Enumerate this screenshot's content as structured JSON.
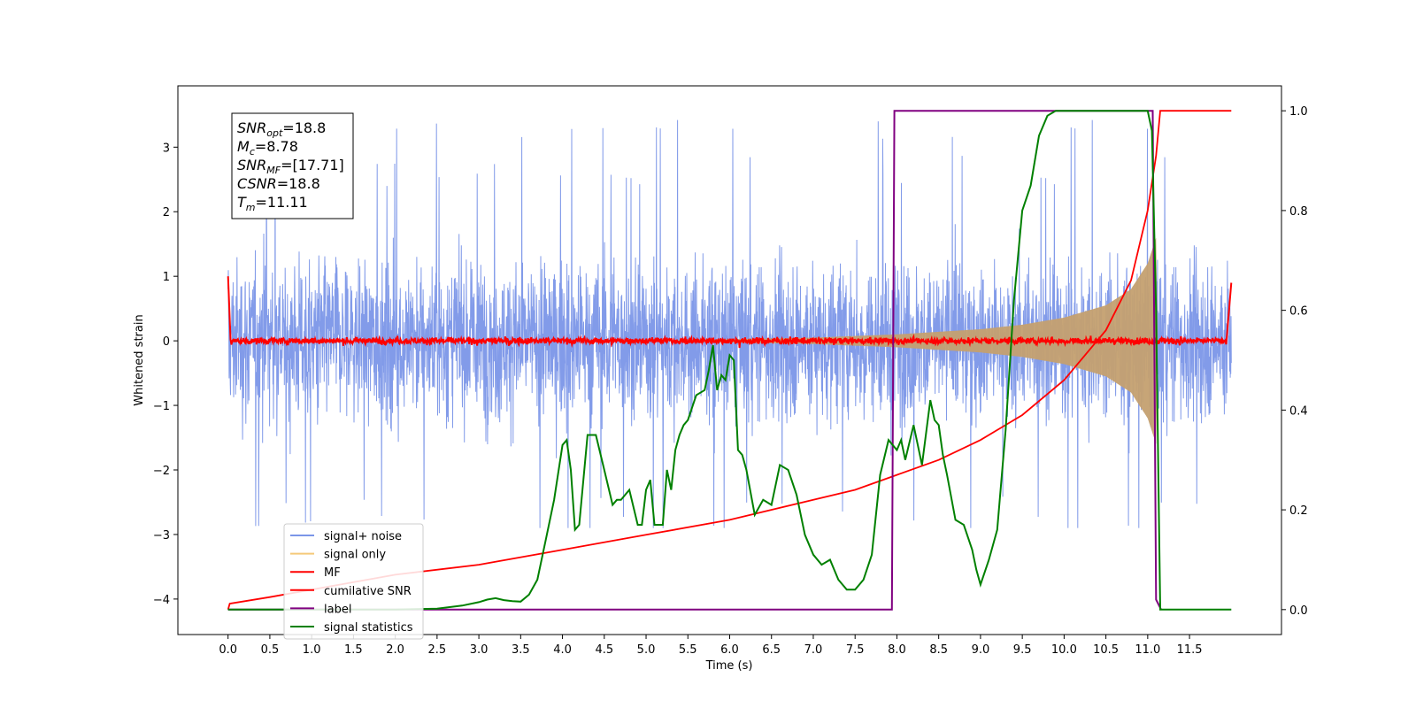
{
  "chart_data": {
    "type": "line",
    "xlabel": "Time (s)",
    "ylabel": "Whitened strain",
    "xlim": [
      -0.6,
      12.6
    ],
    "ylim": [
      -4.55,
      3.95
    ],
    "y2lim": [
      -0.05,
      1.05
    ],
    "xticks": [
      "0.0",
      "0.5",
      "1.0",
      "1.5",
      "2.0",
      "2.5",
      "3.0",
      "3.5",
      "4.0",
      "4.5",
      "5.0",
      "5.5",
      "6.0",
      "6.5",
      "7.0",
      "7.5",
      "8.0",
      "8.5",
      "9.0",
      "9.5",
      "10.0",
      "10.5",
      "11.0",
      "11.5"
    ],
    "yticks": [
      "3",
      "2",
      "1",
      "0",
      "−1",
      "−2",
      "−3",
      "−4"
    ],
    "y2ticks": [
      "1.0",
      "0.8",
      "0.6",
      "0.4",
      "0.2",
      "0.0"
    ],
    "info_box": [
      {
        "sym": "SNR",
        "sub": "opt",
        "val": "=18.8"
      },
      {
        "sym": "M",
        "sub": "c",
        "val": "=8.78"
      },
      {
        "sym": "SNR",
        "sub": "MF",
        "val": "=[17.71]"
      },
      {
        "sym": "CSNR",
        "sub": "",
        "val": "=18.8"
      },
      {
        "sym": "T",
        "sub": "m",
        "val": "=11.11"
      }
    ],
    "legend": {
      "placement": "lower-left",
      "entries": [
        {
          "label": "signal+ noise",
          "color": "#7b96e8"
        },
        {
          "label": "signal only",
          "color": "#f5c97a"
        },
        {
          "label": "MF",
          "color": "#ff0000"
        },
        {
          "label": "cumilative SNR",
          "color": "#ff0000"
        },
        {
          "label": "label",
          "color": "#800080"
        },
        {
          "label": "signal statistics",
          "color": "#008000"
        }
      ]
    },
    "series": [
      {
        "name": "signal+ noise",
        "axis": "left",
        "color": "#7b96e8",
        "description": "noise band roughly between -2.9 and +3.6 spanning t = 0 to 12"
      },
      {
        "name": "signal only",
        "axis": "left",
        "color": "#c4a070",
        "envelope": {
          "t": [
            7.0,
            8.0,
            9.0,
            9.5,
            10.0,
            10.5,
            10.8,
            11.0,
            11.1,
            11.12
          ],
          "amp": [
            0.05,
            0.1,
            0.18,
            0.25,
            0.36,
            0.55,
            0.8,
            1.2,
            1.6,
            0.0
          ]
        }
      },
      {
        "name": "MF",
        "axis": "left",
        "color": "#ff0000",
        "x": [
          0.0,
          0.03,
          0.08,
          11.95,
          12.0
        ],
        "y": [
          1.0,
          0.0,
          0.0,
          0.0,
          0.9
        ]
      },
      {
        "name": "cumilative SNR",
        "axis": "right",
        "color": "#ff0000",
        "x": [
          0.0,
          0.02,
          0.5,
          1.0,
          2.0,
          3.0,
          4.0,
          5.0,
          6.0,
          7.0,
          7.5,
          8.0,
          8.5,
          9.0,
          9.5,
          10.0,
          10.5,
          10.8,
          11.0,
          11.1,
          11.15,
          12.0
        ],
        "y": [
          0.0,
          0.012,
          0.025,
          0.04,
          0.07,
          0.09,
          0.12,
          0.15,
          0.18,
          0.22,
          0.24,
          0.27,
          0.3,
          0.34,
          0.39,
          0.46,
          0.56,
          0.66,
          0.8,
          0.91,
          1.0,
          1.0
        ]
      },
      {
        "name": "label",
        "axis": "right",
        "color": "#800080",
        "x": [
          0.0,
          7.94,
          7.97,
          11.06,
          11.1,
          11.16
        ],
        "y": [
          0.0,
          0.0,
          1.0,
          1.0,
          0.02,
          0.0
        ]
      },
      {
        "name": "signal statistics",
        "axis": "right",
        "color": "#008000",
        "x": [
          0.0,
          1.0,
          2.0,
          2.5,
          2.8,
          3.0,
          3.1,
          3.2,
          3.3,
          3.4,
          3.5,
          3.6,
          3.7,
          3.8,
          3.9,
          4.0,
          4.05,
          4.1,
          4.15,
          4.2,
          4.3,
          4.4,
          4.5,
          4.6,
          4.65,
          4.7,
          4.8,
          4.9,
          4.95,
          5.0,
          5.05,
          5.1,
          5.2,
          5.25,
          5.3,
          5.35,
          5.4,
          5.45,
          5.5,
          5.6,
          5.7,
          5.75,
          5.8,
          5.85,
          5.9,
          5.95,
          6.0,
          6.05,
          6.1,
          6.15,
          6.2,
          6.3,
          6.4,
          6.5,
          6.6,
          6.7,
          6.8,
          6.9,
          7.0,
          7.1,
          7.2,
          7.3,
          7.4,
          7.5,
          7.6,
          7.7,
          7.8,
          7.9,
          8.0,
          8.05,
          8.1,
          8.2,
          8.3,
          8.4,
          8.45,
          8.5,
          8.55,
          8.6,
          8.7,
          8.8,
          8.9,
          8.95,
          9.0,
          9.1,
          9.2,
          9.3,
          9.4,
          9.5,
          9.6,
          9.7,
          9.8,
          9.9,
          10.0,
          10.5,
          11.0,
          11.05,
          11.1,
          11.15,
          12.0
        ],
        "y": [
          0.0,
          0.0,
          0.0,
          0.002,
          0.008,
          0.015,
          0.02,
          0.023,
          0.019,
          0.017,
          0.016,
          0.03,
          0.06,
          0.14,
          0.22,
          0.33,
          0.34,
          0.28,
          0.16,
          0.17,
          0.35,
          0.35,
          0.28,
          0.21,
          0.22,
          0.22,
          0.24,
          0.17,
          0.17,
          0.24,
          0.26,
          0.17,
          0.17,
          0.28,
          0.24,
          0.32,
          0.35,
          0.37,
          0.38,
          0.43,
          0.44,
          0.48,
          0.53,
          0.44,
          0.47,
          0.46,
          0.51,
          0.5,
          0.32,
          0.31,
          0.28,
          0.19,
          0.22,
          0.21,
          0.29,
          0.28,
          0.23,
          0.15,
          0.11,
          0.09,
          0.1,
          0.06,
          0.04,
          0.04,
          0.06,
          0.11,
          0.27,
          0.34,
          0.32,
          0.34,
          0.3,
          0.37,
          0.29,
          0.42,
          0.38,
          0.37,
          0.31,
          0.27,
          0.18,
          0.17,
          0.12,
          0.08,
          0.05,
          0.1,
          0.16,
          0.36,
          0.62,
          0.8,
          0.85,
          0.95,
          0.99,
          1.0,
          1.0,
          1.0,
          1.0,
          0.96,
          0.6,
          0.0,
          0.0
        ]
      }
    ]
  }
}
